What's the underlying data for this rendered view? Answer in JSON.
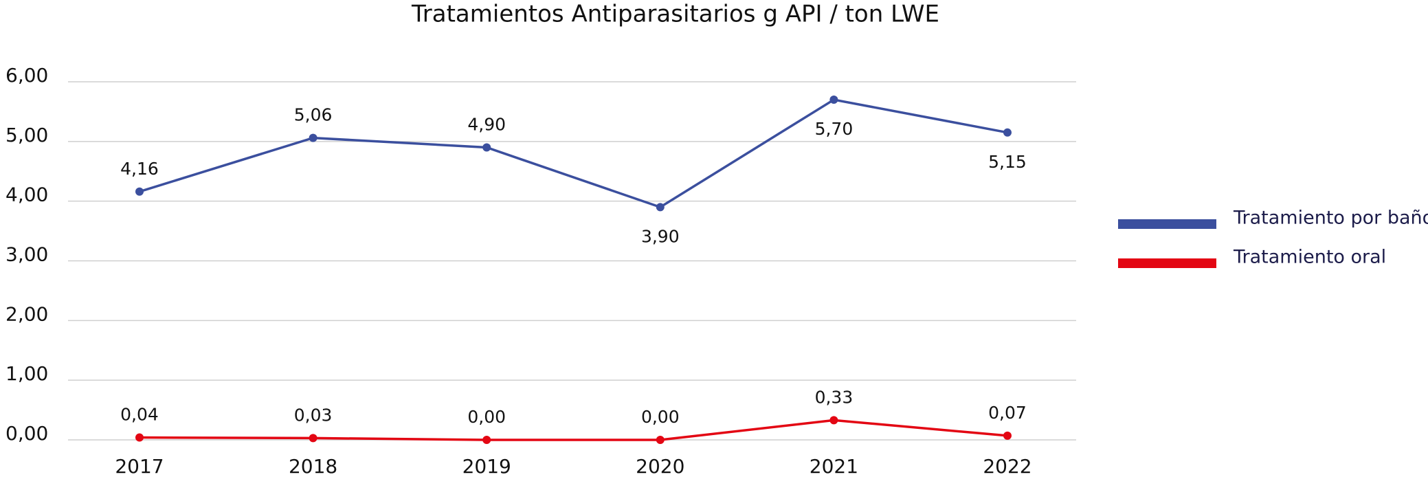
{
  "chart_data": {
    "type": "line",
    "title": "Tratamientos Antiparasitarios g API / ton LWE",
    "categories": [
      "2017",
      "2018",
      "2019",
      "2020",
      "2021",
      "2022"
    ],
    "series": [
      {
        "name": "Tratamiento por baño",
        "color": "#3b4f9e",
        "values": [
          4.16,
          5.06,
          4.9,
          3.9,
          5.7,
          5.15
        ],
        "value_labels": [
          "4,16",
          "5,06",
          "4,90",
          "3,90",
          "5,70",
          "5,15"
        ]
      },
      {
        "name": "Tratamiento oral",
        "color": "#e30613",
        "values": [
          0.04,
          0.03,
          0.0,
          0.0,
          0.33,
          0.07
        ],
        "value_labels": [
          "0,04",
          "0,03",
          "0,00",
          "0,00",
          "0,33",
          "0,07"
        ]
      }
    ],
    "ylim": [
      0,
      6
    ],
    "yticks": [
      {
        "value": 0,
        "label": "0,00"
      },
      {
        "value": 1,
        "label": "1,00"
      },
      {
        "value": 2,
        "label": "2,00"
      },
      {
        "value": 3,
        "label": "3,00"
      },
      {
        "value": 4,
        "label": "4,00"
      },
      {
        "value": 5,
        "label": "5,00"
      },
      {
        "value": 6,
        "label": "6,00"
      }
    ],
    "grid": true,
    "legend": "right"
  }
}
